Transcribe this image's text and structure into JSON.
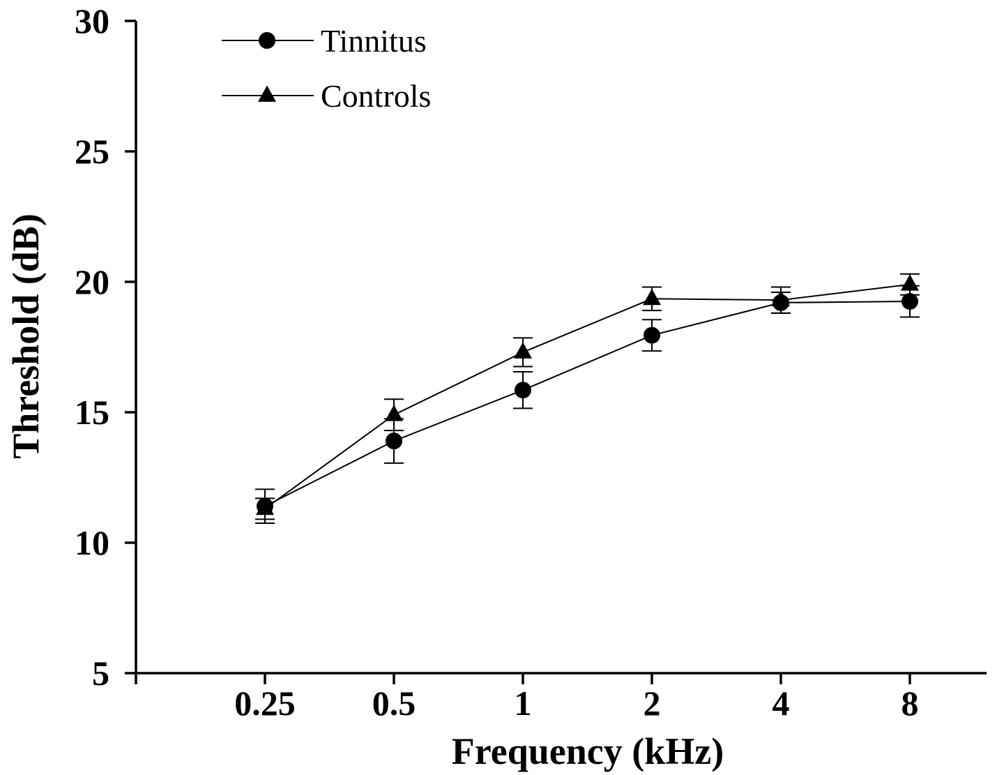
{
  "chart_data": {
    "type": "line",
    "title": "",
    "xlabel": "Frequency (kHz)",
    "ylabel": "Threshold (dB)",
    "categories": [
      "0.25",
      "0.5",
      "1",
      "2",
      "4",
      "8"
    ],
    "ylim": [
      5,
      30
    ],
    "yticks": [
      "5",
      "10",
      "15",
      "20",
      "25",
      "30"
    ],
    "grid": false,
    "legend_position": "top-left",
    "series": [
      {
        "name": "Tinnitus",
        "marker": "circle",
        "values": [
          11.4,
          13.9,
          15.85,
          17.95,
          19.2,
          19.25
        ],
        "error": [
          0.65,
          0.85,
          0.7,
          0.6,
          0.4,
          0.6
        ]
      },
      {
        "name": "Controls",
        "marker": "triangle",
        "values": [
          11.3,
          14.9,
          17.3,
          19.35,
          19.3,
          19.9
        ],
        "error": [
          0.4,
          0.6,
          0.55,
          0.45,
          0.5,
          0.4
        ]
      }
    ],
    "colors": {
      "line": "#000000",
      "marker": "#000000",
      "background": "#ffffff"
    }
  }
}
